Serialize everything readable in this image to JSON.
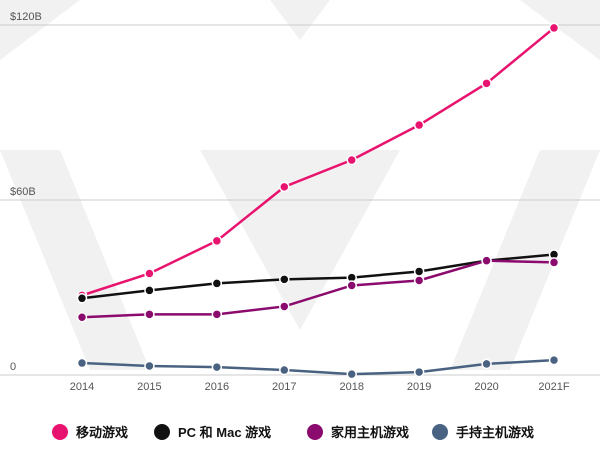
{
  "chart_data": {
    "type": "line",
    "categories": [
      "2014",
      "2015",
      "2016",
      "2017",
      "2018",
      "2019",
      "2020",
      "2021F"
    ],
    "series": [
      {
        "name": "移动游戏",
        "color": "#e8136f",
        "values": [
          27.3,
          34.8,
          46,
          64.5,
          73.7,
          85.7,
          100,
          119
        ]
      },
      {
        "name": "PC 和 Mac 游戏",
        "color": "#111111",
        "values": [
          26.3,
          29,
          31.4,
          32.8,
          33.4,
          35.5,
          39.2,
          41.3
        ]
      },
      {
        "name": "家用主机游戏",
        "color": "#8b0a6e",
        "values": [
          19.8,
          20.8,
          20.8,
          23.5,
          30.7,
          32.4,
          39.2,
          38.6
        ]
      },
      {
        "name": "手持主机游戏",
        "color": "#4a6282",
        "values": [
          4.1,
          3.1,
          2.7,
          1.7,
          0.3,
          1,
          3.8,
          5.1
        ]
      }
    ],
    "ylim": [
      0,
      120
    ],
    "yticks": [
      {
        "value": 0,
        "label": "0"
      },
      {
        "value": 60,
        "label": "$60B"
      },
      {
        "value": 120,
        "label": "$120B"
      }
    ],
    "grid": true
  }
}
